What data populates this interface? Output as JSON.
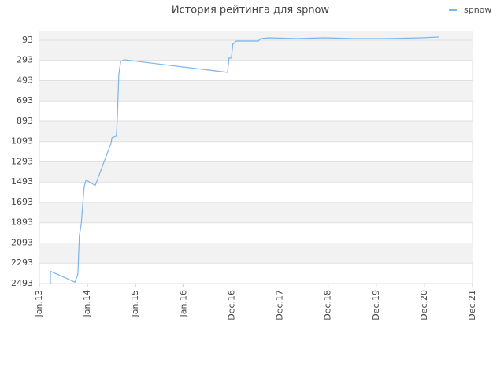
{
  "chart_data": {
    "type": "line",
    "title": "История рейтинга для spnow",
    "x": [
      2013.23,
      2013.23,
      2013.74,
      2013.8,
      2013.83,
      2013.87,
      2013.93,
      2013.97,
      2014.16,
      2014.49,
      2014.51,
      2014.6,
      2014.62,
      2014.65,
      2014.69,
      2014.77,
      2016.91,
      2016.94,
      2016.99,
      2017.02,
      2017.09,
      2017.55,
      2017.6,
      2017.76,
      2018.34,
      2018.92,
      2019.51,
      2020.2,
      2020.94,
      2021.3
    ],
    "series": [
      {
        "name": "spnow",
        "color": "#7cb5ec",
        "values": [
          2493,
          2372,
          2480,
          2403,
          2023,
          1906,
          1542,
          1472,
          1527,
          1108,
          1054,
          1039,
          860,
          434,
          302,
          287,
          411,
          271,
          271,
          132,
          101,
          101,
          78,
          70,
          78,
          70,
          78,
          78,
          70,
          62
        ]
      }
    ],
    "xlim": [
      2013,
      2022
    ],
    "xticks": [
      {
        "value": 2013,
        "label": "Jan.13"
      },
      {
        "value": 2014,
        "label": "Jan.14"
      },
      {
        "value": 2015,
        "label": "Jan.15"
      },
      {
        "value": 2016,
        "label": "Jan.16"
      },
      {
        "value": 2017,
        "label": "Dec.16"
      },
      {
        "value": 2018,
        "label": "Dec.17"
      },
      {
        "value": 2019,
        "label": "Dec.18"
      },
      {
        "value": 2020,
        "label": "Dec.19"
      },
      {
        "value": 2021,
        "label": "Dec.20"
      },
      {
        "value": 2022,
        "label": "Dec.21"
      }
    ],
    "ylim": [
      2493,
      8
    ],
    "yticks": [
      93,
      293,
      493,
      693,
      893,
      1093,
      1293,
      1493,
      1693,
      1893,
      2093,
      2293,
      2493
    ],
    "grid": true,
    "legend": "top-right"
  }
}
